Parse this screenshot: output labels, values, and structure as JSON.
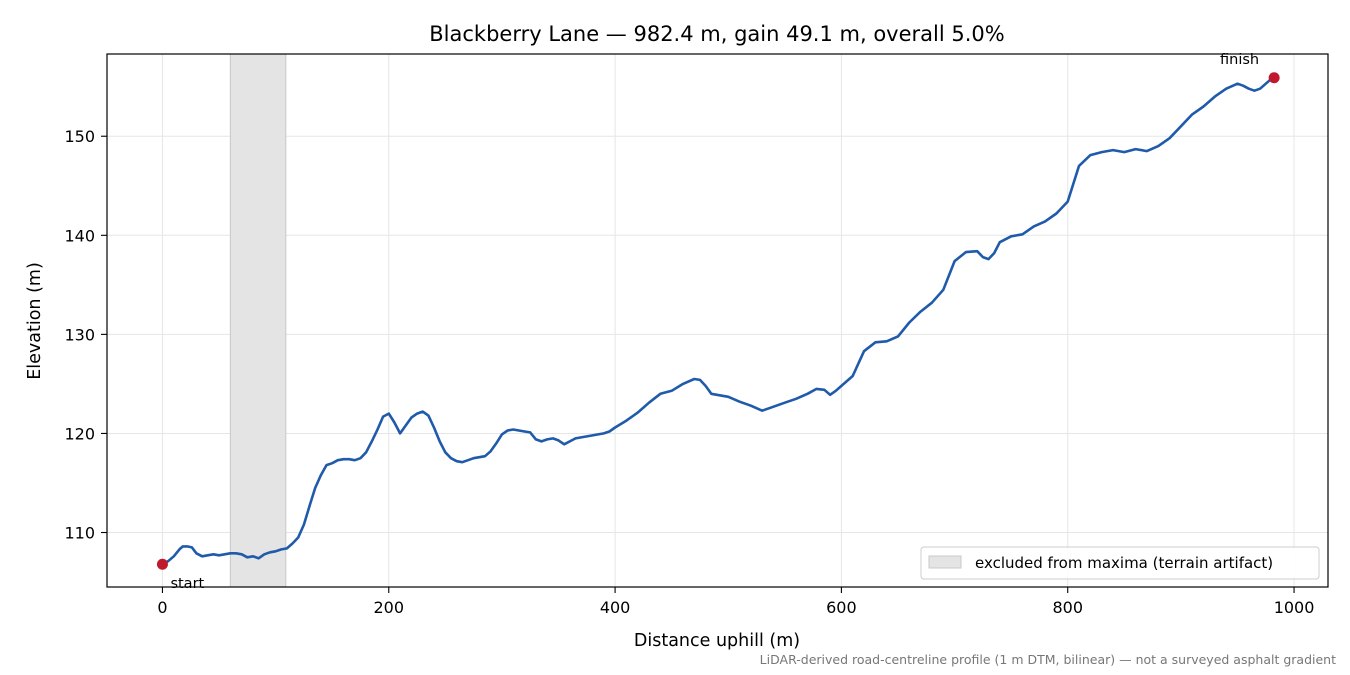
{
  "chart_data": {
    "type": "line",
    "title": "Blackberry Lane — 982.4 m, gain 49.1 m, overall 5.0%",
    "xlabel": "Distance uphill (m)",
    "ylabel": "Elevation (m)",
    "xlim": [
      -49,
      1030
    ],
    "ylim": [
      104.5,
      158.3
    ],
    "xticks": [
      0,
      200,
      400,
      600,
      800,
      1000
    ],
    "yticks": [
      110,
      120,
      130,
      140,
      150
    ],
    "grid": true,
    "legend_position": "lower right",
    "series": [
      {
        "color": "#1f5aab",
        "x": [
          0,
          5,
          10,
          15,
          18,
          22,
          26,
          30,
          35,
          40,
          45,
          50,
          55,
          60,
          65,
          70,
          75,
          80,
          85,
          90,
          95,
          100,
          105,
          110,
          115,
          120,
          125,
          130,
          135,
          140,
          145,
          150,
          155,
          160,
          165,
          170,
          175,
          180,
          185,
          190,
          195,
          200,
          205,
          210,
          215,
          220,
          225,
          230,
          235,
          240,
          245,
          250,
          255,
          260,
          265,
          270,
          275,
          280,
          285,
          290,
          295,
          300,
          305,
          310,
          315,
          320,
          325,
          330,
          335,
          340,
          345,
          350,
          355,
          360,
          365,
          370,
          375,
          380,
          385,
          390,
          395,
          400,
          410,
          420,
          430,
          440,
          450,
          460,
          470,
          475,
          480,
          485,
          490,
          500,
          510,
          520,
          530,
          540,
          550,
          560,
          570,
          578,
          585,
          590,
          595,
          600,
          610,
          620,
          630,
          640,
          650,
          660,
          670,
          680,
          690,
          700,
          710,
          720,
          725,
          730,
          735,
          740,
          750,
          760,
          770,
          780,
          790,
          800,
          810,
          820,
          830,
          840,
          850,
          860,
          870,
          880,
          890,
          900,
          910,
          920,
          930,
          940,
          950,
          955,
          960,
          965,
          970,
          975,
          980,
          982.4
        ],
        "y": [
          106.8,
          107.1,
          107.6,
          108.3,
          108.6,
          108.6,
          108.5,
          107.9,
          107.6,
          107.7,
          107.8,
          107.7,
          107.8,
          107.9,
          107.9,
          107.8,
          107.5,
          107.6,
          107.4,
          107.8,
          108.0,
          108.1,
          108.3,
          108.4,
          108.9,
          109.5,
          110.8,
          112.7,
          114.5,
          115.8,
          116.8,
          117.0,
          117.3,
          117.4,
          117.4,
          117.3,
          117.5,
          118.1,
          119.2,
          120.4,
          121.7,
          122.0,
          121.1,
          120.0,
          120.8,
          121.6,
          122.0,
          122.2,
          121.8,
          120.6,
          119.2,
          118.1,
          117.5,
          117.2,
          117.1,
          117.3,
          117.5,
          117.6,
          117.7,
          118.2,
          119.0,
          119.9,
          120.3,
          120.4,
          120.3,
          120.2,
          120.1,
          119.4,
          119.2,
          119.4,
          119.5,
          119.3,
          118.9,
          119.2,
          119.5,
          119.6,
          119.7,
          119.8,
          119.9,
          120.0,
          120.2,
          120.6,
          121.3,
          122.1,
          123.1,
          124.0,
          124.3,
          125.0,
          125.5,
          125.4,
          124.8,
          124.0,
          123.9,
          123.7,
          123.2,
          122.8,
          122.3,
          122.7,
          123.1,
          123.5,
          124.0,
          124.5,
          124.4,
          123.9,
          124.3,
          124.8,
          125.8,
          128.3,
          129.2,
          129.3,
          129.8,
          131.2,
          132.3,
          133.2,
          134.5,
          137.4,
          138.3,
          138.4,
          137.8,
          137.6,
          138.2,
          139.3,
          139.9,
          140.1,
          140.9,
          141.4,
          142.2,
          143.4,
          147.0,
          148.1,
          148.4,
          148.6,
          148.4,
          148.7,
          148.5,
          149.0,
          149.8,
          151.0,
          152.2,
          153.0,
          154.0,
          154.8,
          155.3,
          155.1,
          154.8,
          154.6,
          154.8,
          155.3,
          155.8,
          155.9
        ]
      }
    ],
    "start_point": {
      "x": 0,
      "y": 106.8,
      "label": "start"
    },
    "finish_point": {
      "x": 982.4,
      "y": 155.9,
      "label": "finish"
    },
    "shaded_region": {
      "x0": 60,
      "x1": 109,
      "label": "excluded from maxima (terrain artifact)",
      "color": "#e4e4e4"
    },
    "footnote": "LiDAR-derived road-centreline profile (1 m DTM, bilinear) — not a surveyed asphalt gradient"
  }
}
